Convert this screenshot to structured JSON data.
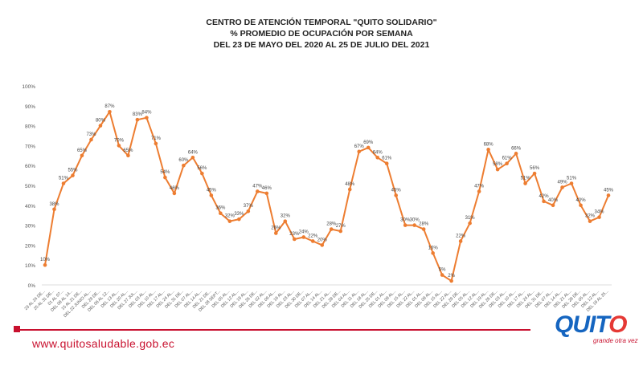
{
  "title_lines": [
    "CENTRO DE ATENCIÓN TEMPORAL \"QUITO SOLIDARIO\"",
    "%  PROMEDIO DE OCUPACIÓN POR SEMANA",
    "DEL 23 DE MAYO DEL  2020 AL 25 DE JULIO DEL 2021"
  ],
  "footer": {
    "url": "www.quitosaludable.gob.ec",
    "logo_prefix": "QUIT",
    "logo_o": "O",
    "logo_sub": "grande otra vez"
  },
  "colors": {
    "line": "#ed7d31",
    "label": "#444444",
    "axis": "#555555",
    "accent": "#c8102e"
  },
  "chart_data": {
    "type": "line",
    "ylim": [
      0,
      100
    ],
    "yticks": [
      "0%",
      "10%",
      "20%",
      "30%",
      "40%",
      "50%",
      "60%",
      "70%",
      "80%",
      "90%",
      "100%"
    ],
    "categories": [
      "23 AL 24 DE...",
      "25 AL 31 DE...",
      "01 AL 07...",
      "DEL 08 AL 14...",
      "15 AL 21 DE...",
      "DEL 22 JUNIO AL...",
      "DEL 29 DE...",
      "DEL 06 AL 12...",
      "DEL 13 AL...",
      "DEL 20 AL...",
      "DEL 27 JUL...",
      "DEL 03 AL...",
      "DEL 10 AL...",
      "DEL 17 AL...",
      "DEL 24 AL...",
      "DEL 31 DE...",
      "DEL 07 AL...",
      "DEL 14 AL...",
      "DEL 21 DE...",
      "DEL 28 SEPT...",
      "DEL 05 AL...",
      "DEL 12 AL...",
      "DEL 19 AL...",
      "DEL 26 DE...",
      "DEL 02 AL...",
      "DEL 09 AL...",
      "DEL 16 AL...",
      "DEL 23 AL...",
      "DEL 30 DE...",
      "DEL 07 AL...",
      "DEL 14 AL...",
      "DEL 21 AL...",
      "DEL 28 DE...",
      "DEL 04 AL...",
      "DEL 11 AL...",
      "DEL 18 AL...",
      "DEL 25 DE...",
      "DEL 01 AL...",
      "DEL 08 AL...",
      "DEL 15 AL...",
      "DEL 22 AL...",
      "DEL 01 AL...",
      "DEL 08 AL...",
      "DEL 15 AL...",
      "DEL 22 AL...",
      "DEL 29 DE...",
      "DEL 05 AL...",
      "DEL 12 AL...",
      "DEL 19 AL...",
      "DEL 26 DE...",
      "DEL 03 AL...",
      "DEL 10 AL...",
      "DEL 17 AL...",
      "DEL 24 AL...",
      "DEL 31 DE...",
      "DEL 07 AL...",
      "DEL 14 AL...",
      "DEL 21 AL...",
      "DEL 28 DE...",
      "DEL 05 AL...",
      "DEL 12 AL...",
      "DEL 19 AL 25..."
    ],
    "values": [
      10,
      38,
      51,
      55,
      65,
      73,
      80,
      87,
      70,
      65,
      83,
      84,
      71,
      54,
      46,
      60,
      64,
      56,
      45,
      36,
      32,
      33,
      37,
      47,
      46,
      26,
      32,
      23,
      24,
      22,
      20,
      28,
      27,
      48,
      67,
      69,
      64,
      61,
      45,
      30,
      30,
      28,
      16,
      5,
      2,
      22,
      31,
      47,
      68,
      58,
      61,
      66,
      51,
      56,
      42,
      40,
      49,
      51,
      40,
      32,
      34,
      45
    ]
  }
}
